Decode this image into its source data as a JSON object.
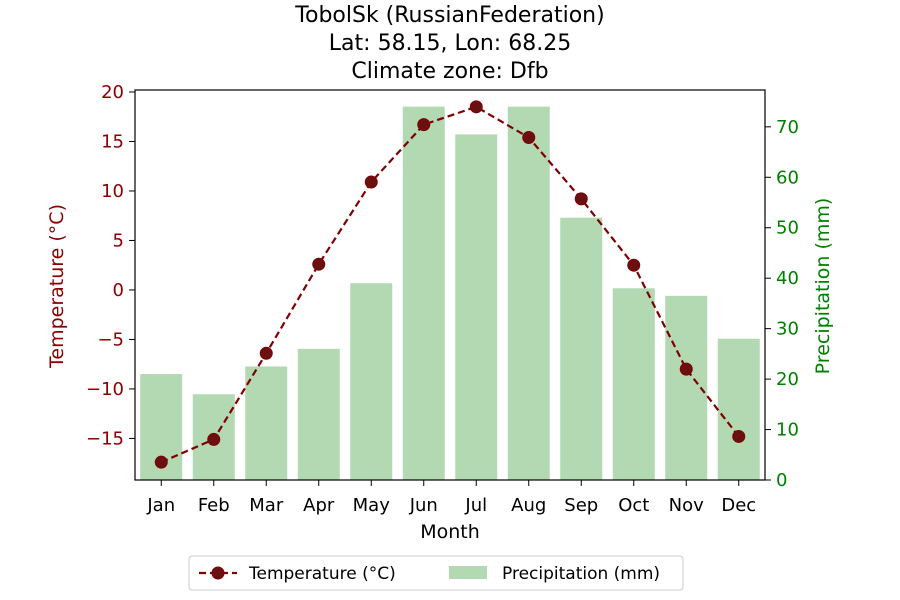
{
  "chart_data": {
    "type": "bar+line",
    "title_lines": [
      "TobolSk (RussianFederation)",
      "Lat: 58.15, Lon: 68.25",
      "Climate zone: Dfb"
    ],
    "xlabel": "Month",
    "ylabel_left": "Temperature (°C)",
    "ylabel_right": "Precipitation (mm)",
    "categories": [
      "Jan",
      "Feb",
      "Mar",
      "Apr",
      "May",
      "Jun",
      "Jul",
      "Aug",
      "Sep",
      "Oct",
      "Nov",
      "Dec"
    ],
    "temperature": {
      "name": "Temperature (°C)",
      "values": [
        -17.4,
        -15.1,
        -6.4,
        2.6,
        10.9,
        16.7,
        18.5,
        15.4,
        9.2,
        2.5,
        -8.0,
        -14.8
      ]
    },
    "precipitation": {
      "name": "Precipitation (mm)",
      "values": [
        21,
        17,
        22.5,
        26,
        39,
        74,
        68.5,
        74,
        52,
        38,
        36.5,
        28
      ]
    },
    "ylim_left": [
      -19.2,
      20.2
    ],
    "yticks_left": [
      "-15",
      "-10",
      "-5",
      "0",
      "5",
      "10",
      "15",
      "20"
    ],
    "ylim_right": [
      0,
      77.3
    ],
    "yticks_right": [
      "0",
      "10",
      "20",
      "30",
      "40",
      "50",
      "60",
      "70"
    ],
    "legend_position": "bottom-center",
    "colors": {
      "temperature": "#800000",
      "temperature_marker_face": "#6b1010",
      "precipitation": "#b2d9b2",
      "left_axis": "#8b0000",
      "right_axis": "#008000"
    }
  }
}
